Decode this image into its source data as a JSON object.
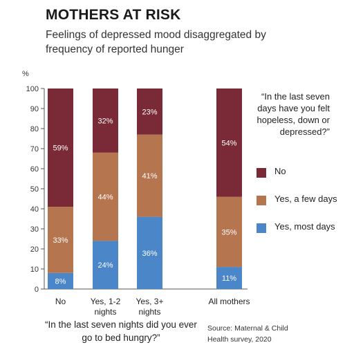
{
  "header": {
    "title": "MOTHERS AT RISK",
    "subtitle": "Feelings of depressed mood disaggregated by frequency of reported hunger"
  },
  "chart_data": {
    "type": "bar",
    "stacked": true,
    "y_unit": "%",
    "ylim": [
      0,
      100
    ],
    "yticks": [
      0,
      10,
      20,
      30,
      40,
      50,
      60,
      70,
      80,
      90,
      100
    ],
    "categories": [
      {
        "label": [
          "No"
        ]
      },
      {
        "label": [
          "Yes, 1-2",
          "nights"
        ]
      },
      {
        "label": [
          "Yes, 3+",
          "nights"
        ]
      },
      {
        "label": [
          "All mothers"
        ]
      }
    ],
    "series": [
      {
        "name": "Yes, most days",
        "color": "#4a86c8",
        "values": [
          8,
          24,
          36,
          11
        ],
        "labels": [
          "8%",
          "24%",
          "36%",
          "11%"
        ]
      },
      {
        "name": "Yes, a few days",
        "color": "#b5764f",
        "values": [
          33,
          44,
          41,
          35
        ],
        "labels": [
          "33%",
          "44%",
          "41%",
          "35%"
        ]
      },
      {
        "name": "No",
        "color": "#7a2a36",
        "values": [
          59,
          32,
          23,
          54
        ],
        "labels": [
          "59%",
          "32%",
          "23%",
          "54%"
        ]
      }
    ],
    "xlabel": "“In the last seven nights did you ever go to bed hungry?”",
    "legend_title": "“In the last seven days have you felt hopeless, down or depressed?”",
    "legend_items": [
      {
        "name": "No",
        "color": "#7a2a36"
      },
      {
        "name": "Yes, a few days",
        "color": "#b5764f"
      },
      {
        "name": "Yes, most days",
        "color": "#4a86c8"
      }
    ],
    "legend_placement": "right",
    "grid": false
  },
  "footer": {
    "source": "Source: Maternal & Child Health survey, 2020"
  }
}
